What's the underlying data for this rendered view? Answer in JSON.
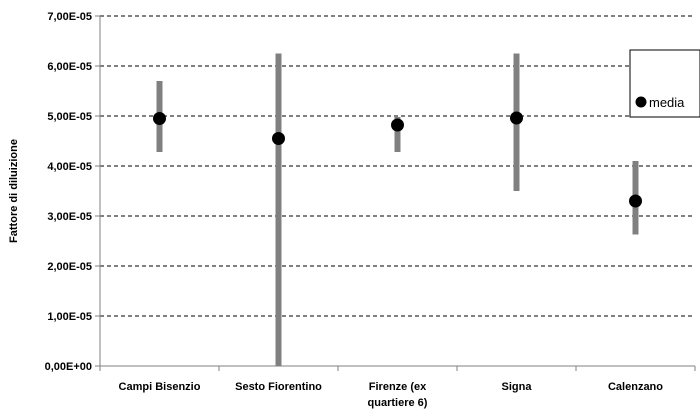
{
  "chart_data": {
    "type": "scatter",
    "categories": [
      "Campi Bisenzio",
      "Sesto Fiorentino",
      "Firenze (ex quartiere 6)",
      "Signa",
      "Calenzano"
    ],
    "category_lines": [
      [
        "Campi Bisenzio"
      ],
      [
        "Sesto Fiorentino"
      ],
      [
        "Firenze (ex",
        "quartiere 6)"
      ],
      [
        "Signa"
      ],
      [
        "Calenzano"
      ]
    ],
    "series": [
      {
        "name": "media",
        "values": [
          4.95e-05,
          4.55e-05,
          4.82e-05,
          4.96e-05,
          3.3e-05
        ],
        "min": [
          4.28e-05,
          0.0,
          4.28e-05,
          3.5e-05,
          2.63e-05
        ],
        "max": [
          5.7e-05,
          6.25e-05,
          4.98e-05,
          6.25e-05,
          4.1e-05
        ]
      }
    ],
    "ylabel": "Fattore di diluizione",
    "xlabel": "",
    "ylim": [
      0,
      7e-05
    ],
    "yticks": [
      "0,00E+00",
      "1,00E-05",
      "2,00E-05",
      "3,00E-05",
      "4,00E-05",
      "5,00E-05",
      "6,00E-05",
      "7,00E-05"
    ],
    "grid": true,
    "legend_position": "right",
    "colors": {
      "marker": "#000000",
      "range_bar": "#808080",
      "grid": "#000000",
      "axis": "#808080"
    }
  }
}
